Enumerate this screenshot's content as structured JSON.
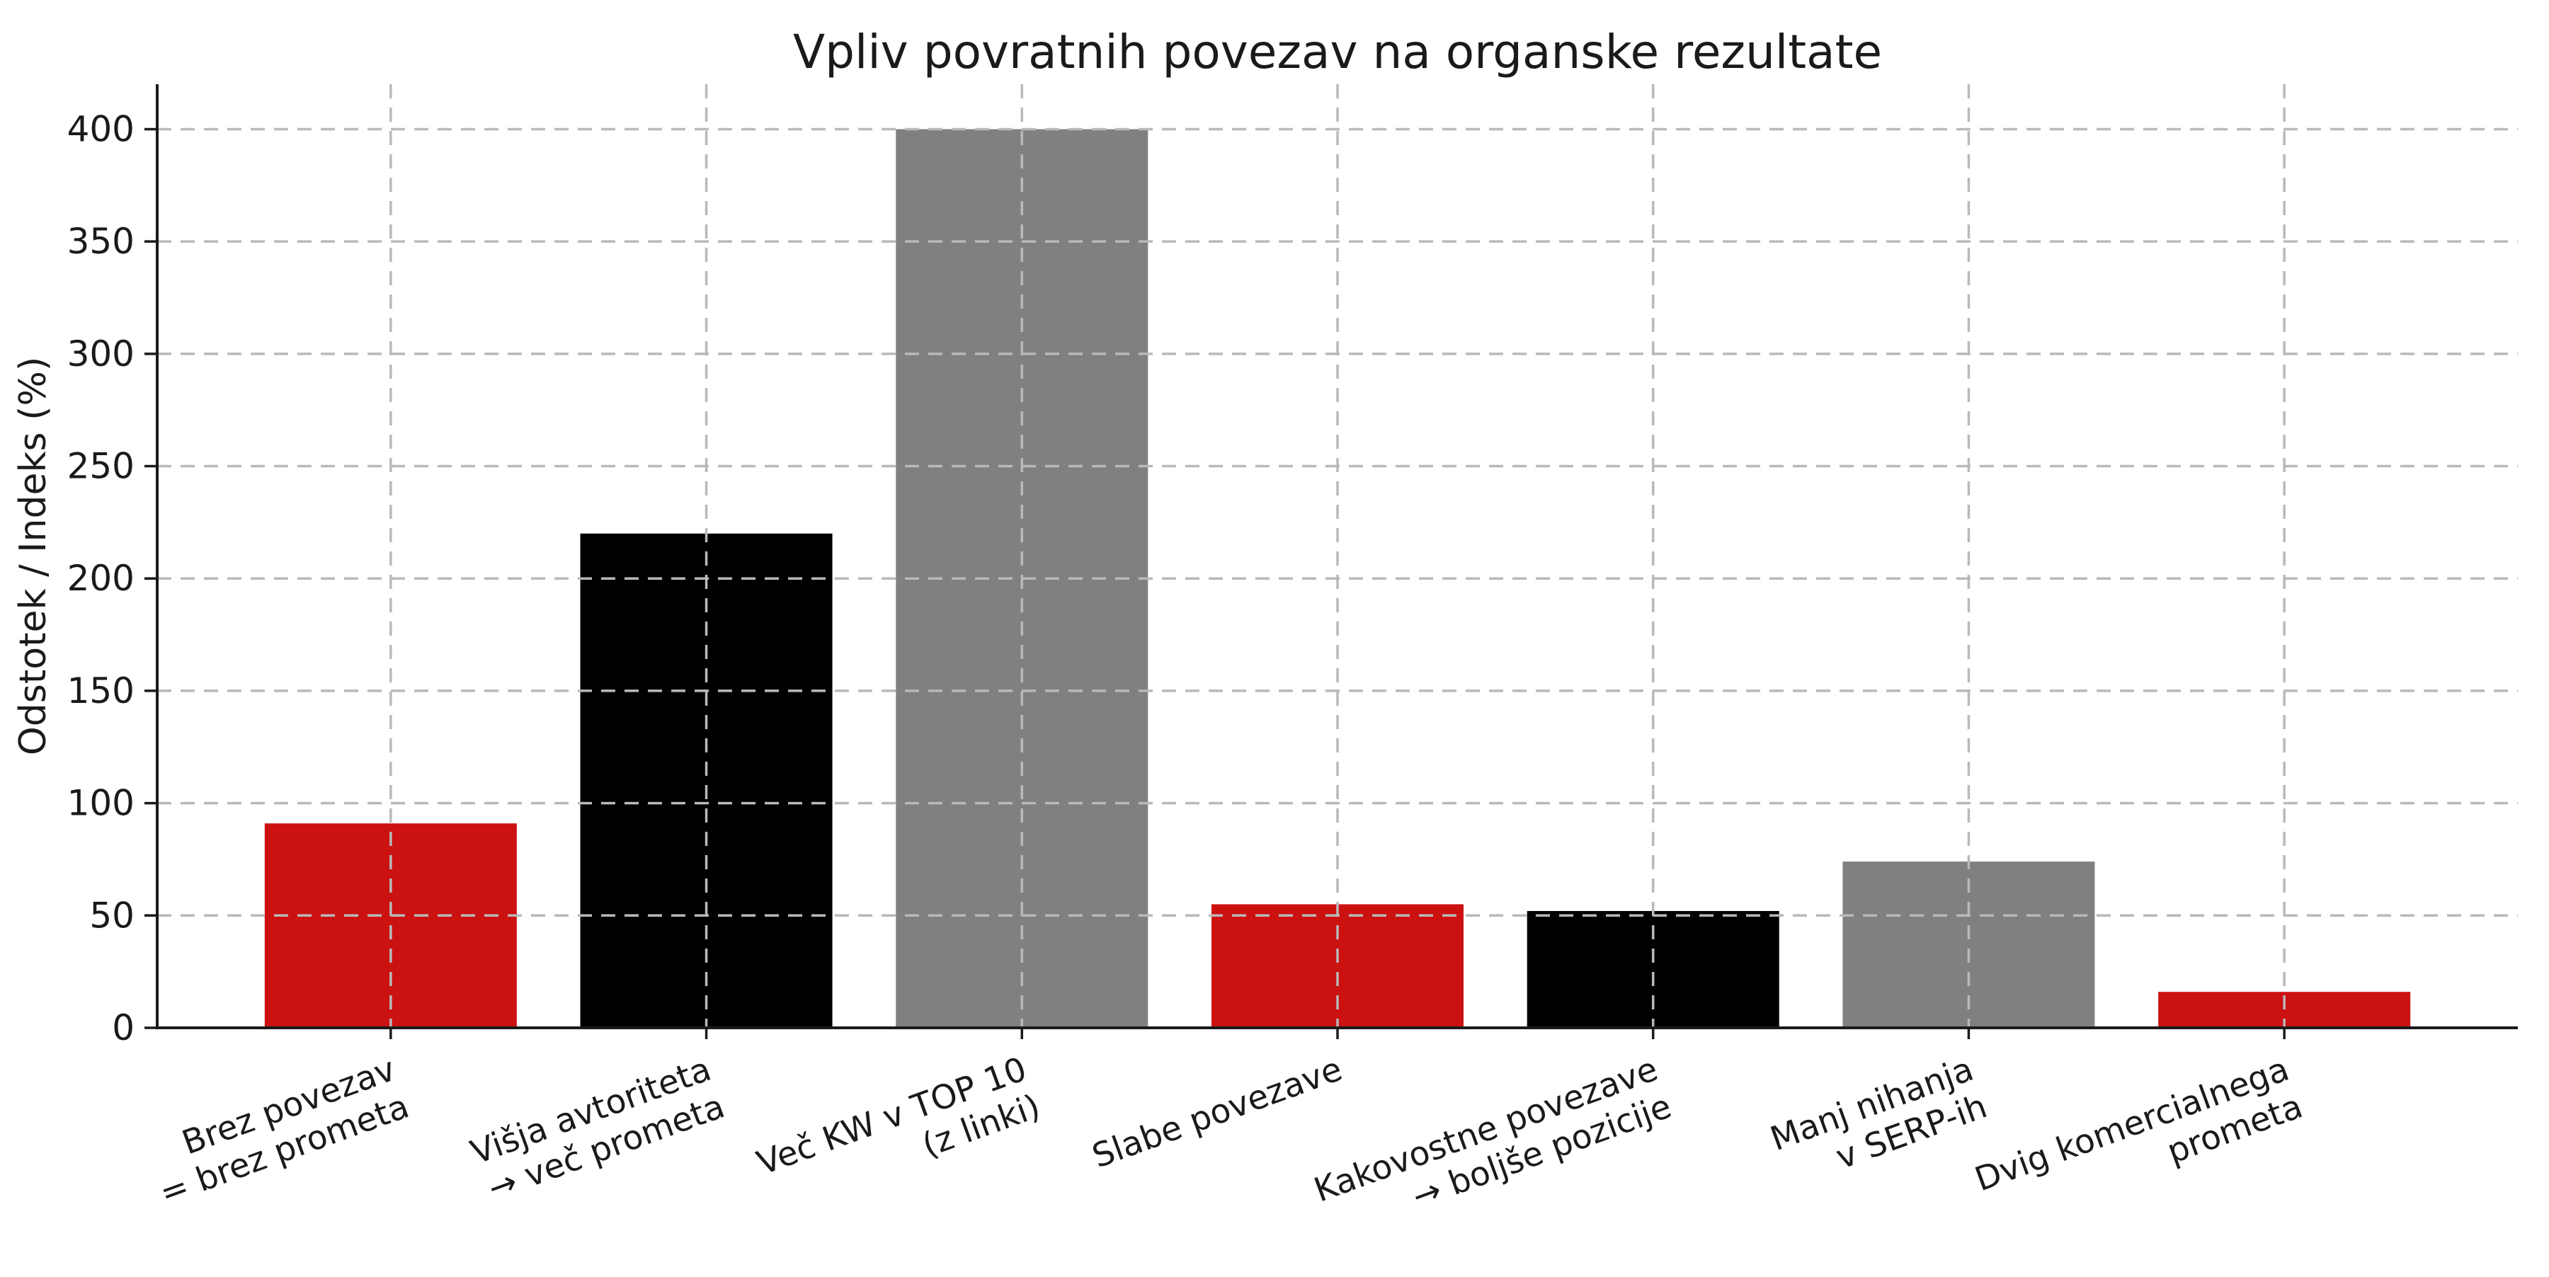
{
  "page": {
    "background": "#ffffff"
  },
  "chart_data": {
    "type": "bar",
    "title": "Vpliv povratnih povezav na organske rezultate",
    "xlabel": "",
    "ylabel": "Odstotek / Indeks (%)",
    "categories": [
      "Brez povezav\n= brez prometa",
      "Višja avtoriteta\n→ več prometa",
      "Več KW v TOP 10\n(z linki)",
      "Slabe povezave",
      "Kakovostne povezave\n→ boljše pozicije",
      "Manj nihanja\nv SERP-ih",
      "Dvig komercialnega\nprometa"
    ],
    "values": [
      91,
      220,
      400,
      55,
      52,
      74,
      16
    ],
    "bar_colors": [
      "#cc1111",
      "#000000",
      "#808080",
      "#cc1111",
      "#000000",
      "#808080",
      "#cc1111"
    ],
    "yticks": [
      0,
      50,
      100,
      150,
      200,
      250,
      300,
      350,
      400
    ],
    "ylim": [
      0,
      420
    ],
    "grid": {
      "visible": true,
      "style": "dashed",
      "axes": "both",
      "color": "#b9b9b9",
      "above_bars": true
    },
    "legend_position": "none",
    "x_tick_label_rotation_deg": 20,
    "axis_color": "#1a1a1a",
    "text_color": "#1a1a1a"
  }
}
